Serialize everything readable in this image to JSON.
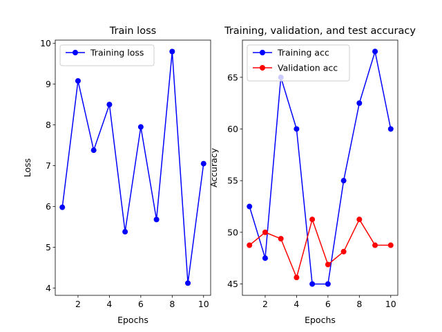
{
  "chart_data": [
    {
      "type": "line",
      "title": "Train loss",
      "xlabel": "Epochs",
      "ylabel": "Loss",
      "x": [
        1,
        2,
        3,
        4,
        5,
        6,
        7,
        8,
        9,
        10
      ],
      "xlim": [
        0.55,
        10.45
      ],
      "ylim": [
        3.82,
        10.08
      ],
      "xticks": [
        2,
        4,
        6,
        8,
        10
      ],
      "yticks": [
        4,
        5,
        6,
        7,
        8,
        9,
        10
      ],
      "grid": false,
      "legend_position": "top-left",
      "series": [
        {
          "name": "Training loss",
          "color": "#0000ff",
          "values": [
            5.98,
            9.08,
            7.38,
            8.5,
            5.38,
            7.95,
            5.68,
            9.8,
            4.12,
            7.05
          ]
        }
      ]
    },
    {
      "type": "line",
      "title": "Training, validation, and test accuracy",
      "xlabel": "Epochs",
      "ylabel": "Accuracy",
      "x": [
        1,
        2,
        3,
        4,
        5,
        6,
        7,
        8,
        9,
        10
      ],
      "xlim": [
        0.55,
        10.45
      ],
      "ylim": [
        43.9,
        68.6
      ],
      "xticks": [
        2,
        4,
        6,
        8,
        10
      ],
      "yticks": [
        45,
        50,
        55,
        60,
        65
      ],
      "grid": false,
      "legend_position": "top-left",
      "series": [
        {
          "name": "Training acc",
          "color": "#0000ff",
          "values": [
            52.5,
            47.5,
            65.0,
            60.0,
            45.0,
            45.0,
            55.0,
            62.5,
            67.5,
            60.0
          ]
        },
        {
          "name": "Validation acc",
          "color": "#ff0000",
          "values": [
            48.75,
            50.0,
            49.38,
            45.63,
            51.25,
            46.88,
            48.13,
            51.25,
            48.75,
            48.75
          ]
        }
      ]
    }
  ]
}
